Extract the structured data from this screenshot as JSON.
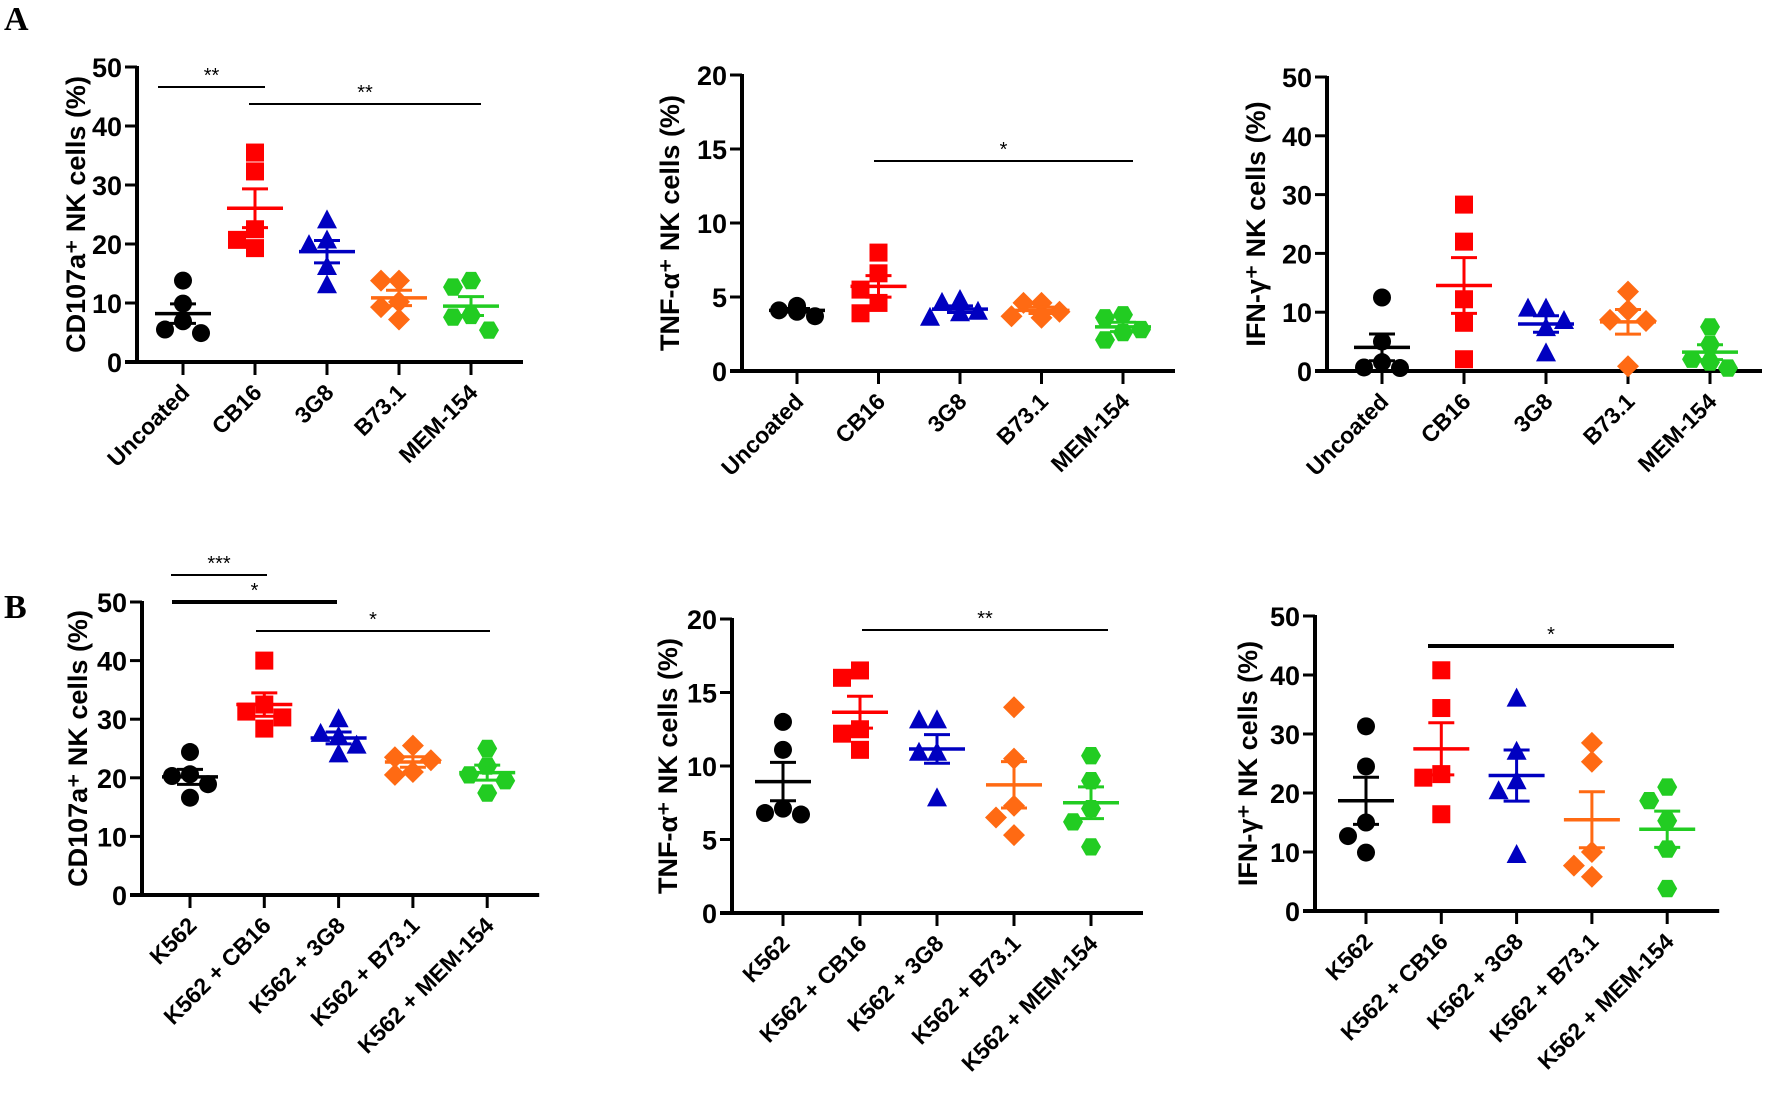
{
  "panels": [
    {
      "label": "A"
    },
    {
      "label": "B"
    }
  ],
  "colors": [
    "#000000",
    "#ff0000",
    "#0000c0",
    "#ff6a13",
    "#22cc22"
  ],
  "markers": [
    "circle",
    "square",
    "triangle",
    "diamond",
    "hexagon"
  ],
  "chart_data": [
    {
      "type": "scatter",
      "panel": "A",
      "ylabel": "CD107a⁺ NK cells (%)",
      "ylim": [
        0,
        50
      ],
      "yticks": [
        "0",
        "10",
        "20",
        "30",
        "40",
        "50"
      ],
      "categories": [
        "Uncoated",
        "CB16",
        "3G8",
        "B73.1",
        "MEM-154"
      ],
      "series": [
        {
          "values": [
            13.8,
            9.9,
            6.9,
            5.5,
            4.9
          ]
        },
        {
          "values": [
            35.5,
            32.3,
            22.5,
            20.7,
            19.3
          ]
        },
        {
          "values": [
            24.0,
            20.6,
            19.8,
            16.1,
            13.0
          ]
        },
        {
          "values": [
            13.8,
            13.8,
            10.2,
            9.3,
            7.2
          ]
        },
        {
          "values": [
            13.8,
            12.7,
            7.9,
            7.6,
            5.4
          ]
        }
      ],
      "significance": [
        {
          "from": 0,
          "to": 1,
          "label": "**"
        },
        {
          "from": 1,
          "to": 4,
          "label": "**"
        }
      ]
    },
    {
      "type": "scatter",
      "panel": "A",
      "ylabel": "TNF-α⁺ NK cells (%)",
      "ylim": [
        0,
        20
      ],
      "yticks": [
        "0",
        "5",
        "10",
        "15",
        "20"
      ],
      "categories": [
        "Uncoated",
        "CB16",
        "3G8",
        "B73.1",
        "MEM-154"
      ],
      "series": [
        {
          "values": [
            4.4,
            4.1,
            3.7,
            4.3,
            4.0
          ]
        },
        {
          "values": [
            8.0,
            6.6,
            5.5,
            4.6,
            3.9
          ]
        },
        {
          "values": [
            4.8,
            4.6,
            4.0,
            3.9,
            3.6
          ]
        },
        {
          "values": [
            4.6,
            4.6,
            4.0,
            3.7,
            3.6
          ]
        },
        {
          "values": [
            3.8,
            3.6,
            2.8,
            2.6,
            2.1
          ]
        }
      ],
      "significance": [
        {
          "from": 1,
          "to": 4,
          "label": "*"
        }
      ]
    },
    {
      "type": "scatter",
      "panel": "A",
      "ylabel": "IFN-γ⁺ NK cells (%)",
      "ylim": [
        0,
        50
      ],
      "yticks": [
        "0",
        "10",
        "20",
        "30",
        "40",
        "50"
      ],
      "categories": [
        "Uncoated",
        "CB16",
        "3G8",
        "B73.1",
        "MEM-154"
      ],
      "series": [
        {
          "values": [
            12.5,
            5.0,
            1.5,
            0.6,
            0.5
          ]
        },
        {
          "values": [
            28.3,
            22.0,
            12.2,
            8.2,
            2.0
          ]
        },
        {
          "values": [
            10.6,
            10.6,
            8.5,
            7.3,
            3.0
          ]
        },
        {
          "values": [
            13.5,
            10.3,
            8.7,
            8.5,
            0.8
          ]
        },
        {
          "values": [
            7.5,
            4.5,
            2.0,
            1.5,
            0.5
          ]
        }
      ],
      "significance": []
    },
    {
      "type": "scatter",
      "panel": "B",
      "ylabel": "CD107a⁺ NK cells (%)",
      "ylim": [
        0,
        50
      ],
      "yticks": [
        "0",
        "10",
        "20",
        "30",
        "40",
        "50"
      ],
      "categories": [
        "K562",
        "K562 + CB16",
        "K562 + 3G8",
        "K562 + B73.1",
        "K562 + MEM-154"
      ],
      "series": [
        {
          "values": [
            24.4,
            20.6,
            20.3,
            18.9,
            16.6
          ]
        },
        {
          "values": [
            40.0,
            32.5,
            31.3,
            30.3,
            28.4
          ]
        },
        {
          "values": [
            30.0,
            27.5,
            27.0,
            25.5,
            24.0
          ]
        },
        {
          "values": [
            25.5,
            23.5,
            23.0,
            21.0,
            20.5
          ]
        },
        {
          "values": [
            25.0,
            22.0,
            20.5,
            19.5,
            17.4
          ]
        }
      ],
      "significance": [
        {
          "from": 0,
          "to": 1,
          "label": "***"
        },
        {
          "from": 0,
          "to": 2,
          "label": "*"
        },
        {
          "from": 1,
          "to": 4,
          "label": "*"
        }
      ]
    },
    {
      "type": "scatter",
      "panel": "B",
      "ylabel": "TNF-α⁺ NK cells (%)",
      "ylim": [
        0,
        20
      ],
      "yticks": [
        "0",
        "5",
        "10",
        "15",
        "20"
      ],
      "categories": [
        "K562",
        "K562 + CB16",
        "K562 + 3G8",
        "K562 + B73.1",
        "K562 + MEM-154"
      ],
      "series": [
        {
          "values": [
            13.0,
            11.1,
            7.1,
            6.8,
            6.7
          ]
        },
        {
          "values": [
            16.5,
            16.0,
            12.5,
            12.2,
            11.1
          ]
        },
        {
          "values": [
            13.1,
            13.1,
            10.9,
            10.9,
            7.8
          ]
        },
        {
          "values": [
            14.0,
            10.5,
            7.3,
            6.5,
            5.3
          ]
        },
        {
          "values": [
            10.7,
            9.0,
            7.1,
            6.2,
            4.5
          ]
        }
      ],
      "significance": [
        {
          "from": 1,
          "to": 4,
          "label": "**"
        }
      ]
    },
    {
      "type": "scatter",
      "panel": "B",
      "ylabel": "IFN-γ⁺ NK cells (%)",
      "ylim": [
        0,
        50
      ],
      "yticks": [
        "0",
        "10",
        "20",
        "30",
        "40",
        "50"
      ],
      "categories": [
        "K562",
        "K562 + CB16",
        "K562 + 3G8",
        "K562 + B73.1",
        "K562 + MEM-154"
      ],
      "series": [
        {
          "values": [
            31.3,
            24.5,
            15.0,
            12.7,
            9.9
          ]
        },
        {
          "values": [
            40.8,
            34.4,
            23.2,
            22.6,
            16.4
          ]
        },
        {
          "values": [
            36.0,
            27.0,
            22.0,
            20.3,
            9.5
          ]
        },
        {
          "values": [
            28.5,
            25.3,
            10.0,
            7.7,
            5.8
          ]
        },
        {
          "values": [
            21.0,
            18.7,
            15.3,
            10.5,
            3.8
          ]
        }
      ],
      "significance": [
        {
          "from": 1,
          "to": 4,
          "label": "*"
        }
      ]
    }
  ]
}
